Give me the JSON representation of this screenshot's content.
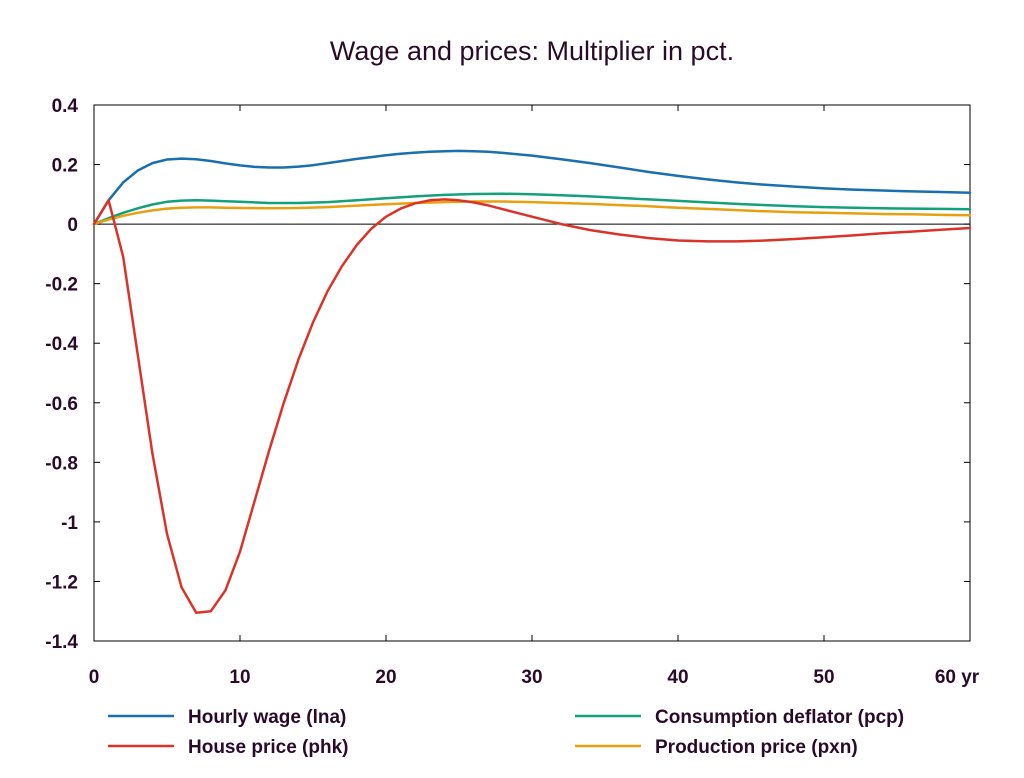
{
  "chart_data": {
    "type": "line",
    "title": "Wage and prices: Multiplier in pct.",
    "xlabel": "",
    "ylabel": "",
    "x_unit_label": "yr",
    "xlim": [
      0,
      60
    ],
    "ylim": [
      -1.4,
      0.4
    ],
    "x_ticks": [
      0,
      10,
      20,
      30,
      40,
      50,
      60
    ],
    "x_tick_labels": [
      "0",
      "10",
      "20",
      "30",
      "40",
      "50",
      "60 yr"
    ],
    "y_ticks": [
      0.4,
      0.2,
      0,
      -0.2,
      -0.4,
      -0.6,
      -0.8,
      -1,
      -1.2,
      -1.4
    ],
    "y_tick_labels": [
      "0.4",
      "0.2",
      "0",
      "-0.2",
      "-0.4",
      "-0.6",
      "-0.8",
      "-1",
      "-1.2",
      "-1.4"
    ],
    "grid": false,
    "zero_line": true,
    "legend_position": "bottom",
    "series": [
      {
        "name": "Hourly wage (lna)",
        "color": "#1a6fae",
        "points": [
          [
            0,
            0
          ],
          [
            1,
            0.08
          ],
          [
            2,
            0.14
          ],
          [
            3,
            0.18
          ],
          [
            4,
            0.205
          ],
          [
            5,
            0.217
          ],
          [
            6,
            0.22
          ],
          [
            7,
            0.218
          ],
          [
            8,
            0.212
          ],
          [
            9,
            0.204
          ],
          [
            10,
            0.197
          ],
          [
            11,
            0.192
          ],
          [
            12,
            0.19
          ],
          [
            13,
            0.19
          ],
          [
            14,
            0.193
          ],
          [
            15,
            0.198
          ],
          [
            16,
            0.205
          ],
          [
            17,
            0.212
          ],
          [
            18,
            0.219
          ],
          [
            19,
            0.225
          ],
          [
            20,
            0.231
          ],
          [
            21,
            0.236
          ],
          [
            22,
            0.24
          ],
          [
            23,
            0.243
          ],
          [
            24,
            0.245
          ],
          [
            25,
            0.246
          ],
          [
            26,
            0.245
          ],
          [
            27,
            0.243
          ],
          [
            28,
            0.239
          ],
          [
            30,
            0.23
          ],
          [
            32,
            0.218
          ],
          [
            34,
            0.205
          ],
          [
            36,
            0.19
          ],
          [
            38,
            0.175
          ],
          [
            40,
            0.162
          ],
          [
            42,
            0.15
          ],
          [
            44,
            0.14
          ],
          [
            46,
            0.132
          ],
          [
            48,
            0.126
          ],
          [
            50,
            0.12
          ],
          [
            52,
            0.116
          ],
          [
            54,
            0.113
          ],
          [
            56,
            0.11
          ],
          [
            58,
            0.108
          ],
          [
            60,
            0.105
          ]
        ]
      },
      {
        "name": "House price (phk)",
        "color": "#d9332a",
        "points": [
          [
            0,
            0
          ],
          [
            1,
            0.08
          ],
          [
            2,
            -0.11
          ],
          [
            3,
            -0.44
          ],
          [
            4,
            -0.77
          ],
          [
            5,
            -1.04
          ],
          [
            6,
            -1.22
          ],
          [
            7,
            -1.305
          ],
          [
            8,
            -1.3
          ],
          [
            9,
            -1.23
          ],
          [
            10,
            -1.1
          ],
          [
            11,
            -0.93
          ],
          [
            12,
            -0.76
          ],
          [
            13,
            -0.6
          ],
          [
            14,
            -0.455
          ],
          [
            15,
            -0.33
          ],
          [
            16,
            -0.225
          ],
          [
            17,
            -0.14
          ],
          [
            18,
            -0.07
          ],
          [
            19,
            -0.015
          ],
          [
            20,
            0.025
          ],
          [
            21,
            0.052
          ],
          [
            22,
            0.07
          ],
          [
            23,
            0.08
          ],
          [
            24,
            0.083
          ],
          [
            25,
            0.08
          ],
          [
            26,
            0.073
          ],
          [
            27,
            0.063
          ],
          [
            28,
            0.05
          ],
          [
            30,
            0.025
          ],
          [
            32,
            0
          ],
          [
            34,
            -0.02
          ],
          [
            36,
            -0.035
          ],
          [
            38,
            -0.047
          ],
          [
            40,
            -0.055
          ],
          [
            42,
            -0.058
          ],
          [
            44,
            -0.058
          ],
          [
            46,
            -0.055
          ],
          [
            48,
            -0.05
          ],
          [
            50,
            -0.044
          ],
          [
            52,
            -0.038
          ],
          [
            54,
            -0.031
          ],
          [
            56,
            -0.025
          ],
          [
            58,
            -0.019
          ],
          [
            60,
            -0.013
          ]
        ]
      },
      {
        "name": "Consumption deflator (pcp)",
        "color": "#13a07a",
        "points": [
          [
            0,
            0
          ],
          [
            1,
            0.02
          ],
          [
            2,
            0.038
          ],
          [
            3,
            0.053
          ],
          [
            4,
            0.066
          ],
          [
            5,
            0.075
          ],
          [
            6,
            0.079
          ],
          [
            7,
            0.08
          ],
          [
            8,
            0.079
          ],
          [
            9,
            0.077
          ],
          [
            10,
            0.075
          ],
          [
            12,
            0.071
          ],
          [
            14,
            0.071
          ],
          [
            16,
            0.074
          ],
          [
            18,
            0.08
          ],
          [
            20,
            0.087
          ],
          [
            22,
            0.093
          ],
          [
            24,
            0.098
          ],
          [
            26,
            0.101
          ],
          [
            28,
            0.102
          ],
          [
            30,
            0.1
          ],
          [
            32,
            0.097
          ],
          [
            34,
            0.093
          ],
          [
            36,
            0.088
          ],
          [
            38,
            0.083
          ],
          [
            40,
            0.078
          ],
          [
            42,
            0.073
          ],
          [
            44,
            0.068
          ],
          [
            46,
            0.064
          ],
          [
            48,
            0.06
          ],
          [
            50,
            0.057
          ],
          [
            52,
            0.055
          ],
          [
            54,
            0.053
          ],
          [
            56,
            0.052
          ],
          [
            58,
            0.051
          ],
          [
            60,
            0.05
          ]
        ]
      },
      {
        "name": "Production price (pxn)",
        "color": "#e6a010",
        "points": [
          [
            0,
            0
          ],
          [
            1,
            0.015
          ],
          [
            2,
            0.028
          ],
          [
            3,
            0.038
          ],
          [
            4,
            0.046
          ],
          [
            5,
            0.052
          ],
          [
            6,
            0.055
          ],
          [
            7,
            0.056
          ],
          [
            8,
            0.056
          ],
          [
            9,
            0.055
          ],
          [
            10,
            0.054
          ],
          [
            12,
            0.053
          ],
          [
            14,
            0.054
          ],
          [
            16,
            0.057
          ],
          [
            18,
            0.062
          ],
          [
            20,
            0.067
          ],
          [
            22,
            0.071
          ],
          [
            24,
            0.074
          ],
          [
            26,
            0.076
          ],
          [
            28,
            0.076
          ],
          [
            30,
            0.074
          ],
          [
            32,
            0.071
          ],
          [
            34,
            0.068
          ],
          [
            36,
            0.064
          ],
          [
            38,
            0.06
          ],
          [
            40,
            0.055
          ],
          [
            42,
            0.051
          ],
          [
            44,
            0.047
          ],
          [
            46,
            0.043
          ],
          [
            48,
            0.04
          ],
          [
            50,
            0.038
          ],
          [
            52,
            0.036
          ],
          [
            54,
            0.034
          ],
          [
            56,
            0.033
          ],
          [
            58,
            0.031
          ],
          [
            60,
            0.03
          ]
        ]
      }
    ]
  }
}
